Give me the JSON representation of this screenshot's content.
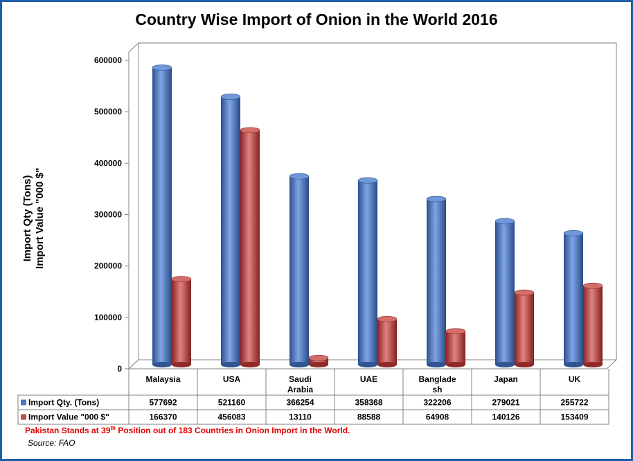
{
  "chart_data": {
    "type": "bar",
    "title": "Country Wise Import of Onion in the World 2016",
    "ylabel_line1": "Import Qty (Tons)",
    "ylabel_line2": "Import Value \"000 $\"",
    "ylim": [
      0,
      600000
    ],
    "yticks": [
      "0",
      "100000",
      "200000",
      "300000",
      "400000",
      "500000",
      "600000"
    ],
    "categories": [
      [
        "Malaysia"
      ],
      [
        "USA"
      ],
      [
        "Saudi",
        "Arabia"
      ],
      [
        "UAE"
      ],
      [
        "Banglade",
        "sh"
      ],
      [
        "Japan"
      ],
      [
        "UK"
      ]
    ],
    "series": [
      {
        "name": "Import Qty. (Tons)",
        "color": "#4a78c2",
        "values": [
          577692,
          521160,
          366254,
          358368,
          322206,
          279021,
          255722
        ],
        "labels": [
          "577692",
          "521160",
          "366254",
          "358368",
          "322206",
          "279021",
          "255722"
        ]
      },
      {
        "name": "Import Value \"000 $\"",
        "color": "#c0504d",
        "values": [
          166370,
          456083,
          13110,
          88588,
          64908,
          140126,
          153409
        ],
        "labels": [
          "166370",
          "456083",
          "13110",
          "88588",
          "64908",
          "140126",
          "153409"
        ]
      }
    ],
    "grid": false,
    "legend": "data-table"
  },
  "footnote": {
    "prefix": "Pakistan Stands at 39",
    "sup": "th",
    "suffix": "  Position out of 183 Countries in Onion Import in the World."
  },
  "source": "Source: FAO"
}
